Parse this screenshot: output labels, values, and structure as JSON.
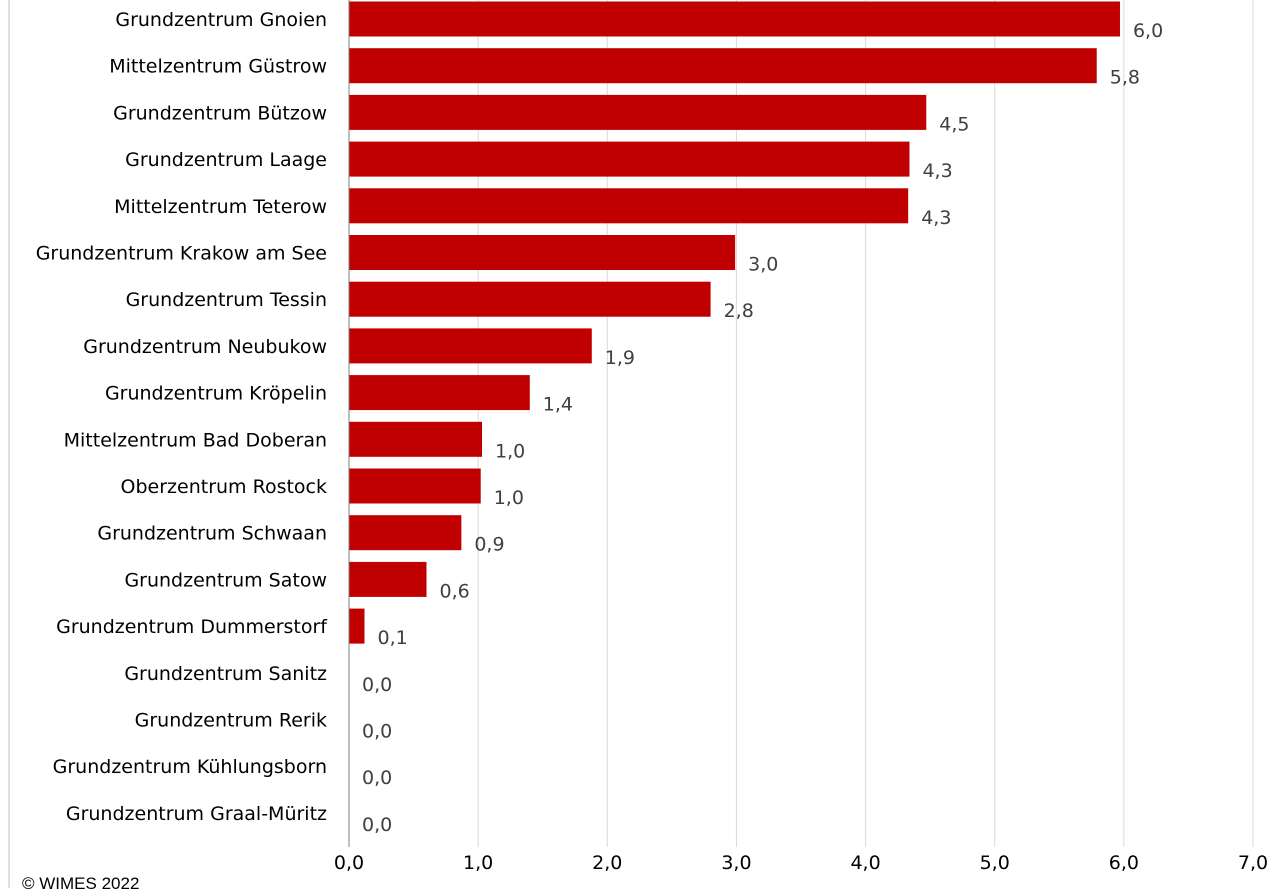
{
  "chart_data": {
    "type": "bar",
    "orientation": "horizontal",
    "categories": [
      "Grundzentrum Gnoien",
      "Mittelzentrum Güstrow",
      "Grundzentrum Bützow",
      "Grundzentrum Laage",
      "Mittelzentrum Teterow",
      "Grundzentrum Krakow am See",
      "Grundzentrum Tessin",
      "Grundzentrum Neubukow",
      "Grundzentrum Kröpelin",
      "Mittelzentrum Bad Doberan",
      "Oberzentrum Rostock",
      "Grundzentrum Schwaan",
      "Grundzentrum Satow",
      "Grundzentrum Dummerstorf",
      "Grundzentrum Sanitz",
      "Grundzentrum Rerik",
      "Grundzentrum Kühlungsborn",
      "Grundzentrum Graal-Müritz"
    ],
    "values": [
      5.97,
      5.79,
      4.47,
      4.34,
      4.33,
      2.99,
      2.8,
      1.88,
      1.4,
      1.03,
      1.02,
      0.87,
      0.6,
      0.12,
      0.0,
      0.0,
      0.0,
      0.0
    ],
    "value_labels": [
      "6,0",
      "5,8",
      "4,5",
      "4,3",
      "4,3",
      "3,0",
      "2,8",
      "1,9",
      "1,4",
      "1,0",
      "1,0",
      "0,9",
      "0,6",
      "0,1",
      "0,0",
      "0,0",
      "0,0",
      "0,0"
    ],
    "x_ticks": [
      0,
      1,
      2,
      3,
      4,
      5,
      6,
      7
    ],
    "x_tick_labels": [
      "0,0",
      "1,0",
      "2,0",
      "3,0",
      "4,0",
      "5,0",
      "6,0",
      "7,0"
    ],
    "xlim": [
      0,
      7
    ],
    "grid": "vertical",
    "legend": "none",
    "bar_color": "#c00000",
    "grid_color": "#d9d9d9"
  },
  "footer": {
    "copyright": "© WIMES 2022"
  }
}
